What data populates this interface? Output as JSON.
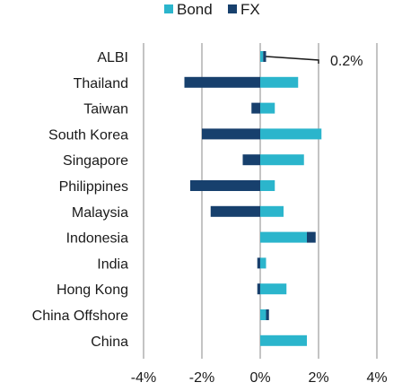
{
  "chart_data": {
    "type": "bar",
    "orientation": "horizontal",
    "stacked": true,
    "categories": [
      "ALBI",
      "Thailand",
      "Taiwan",
      "South Korea",
      "Singapore",
      "Philippines",
      "Malaysia",
      "Indonesia",
      "India",
      "Hong Kong",
      "China Offshore",
      "China"
    ],
    "series": [
      {
        "name": "Bond",
        "color": "#2bb5cc",
        "values": [
          0.1,
          1.3,
          0.5,
          2.1,
          1.5,
          0.5,
          0.8,
          1.6,
          0.2,
          0.9,
          0.2,
          1.6
        ]
      },
      {
        "name": "FX",
        "color": "#17406d",
        "values": [
          0.1,
          -2.6,
          -0.3,
          -2.0,
          -0.6,
          -2.4,
          -1.7,
          0.3,
          -0.1,
          -0.1,
          0.1,
          0.0
        ]
      }
    ],
    "xlim": [
      -4,
      4
    ],
    "xticks": [
      -4,
      -2,
      0,
      2,
      4
    ],
    "xtick_labels": [
      "-4%",
      "-2%",
      "0%",
      "2%",
      "4%"
    ],
    "grid": true,
    "legend_position": "top",
    "annotations": [
      {
        "category": "ALBI",
        "text": "0.2%"
      }
    ]
  }
}
